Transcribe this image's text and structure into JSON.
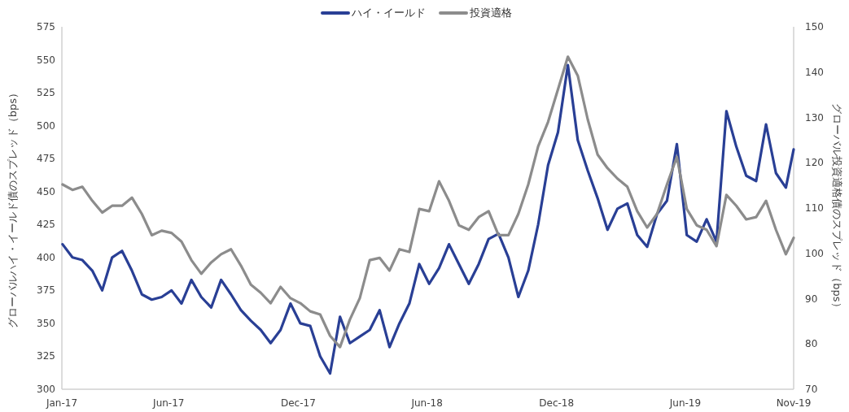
{
  "chart_data": {
    "type": "line",
    "ylabel": "グローバルハイ・イールド債のスプレッド（bps）",
    "y2label": "グローバル投資適格債のスプレッド（bps）",
    "legend": "top",
    "x": [
      "2017-01-02",
      "2017-01-16",
      "2017-01-30",
      "2017-02-13",
      "2017-02-27",
      "2017-03-13",
      "2017-03-27",
      "2017-04-10",
      "2017-04-24",
      "2017-05-08",
      "2017-05-22",
      "2017-06-05",
      "2017-06-19",
      "2017-07-03",
      "2017-07-17",
      "2017-07-31",
      "2017-08-14",
      "2017-08-28",
      "2017-09-11",
      "2017-09-25",
      "2017-10-09",
      "2017-10-23",
      "2017-11-06",
      "2017-11-20",
      "2017-12-04",
      "2017-12-18",
      "2018-01-01",
      "2018-01-15",
      "2018-01-29",
      "2018-02-12",
      "2018-02-26",
      "2018-03-12",
      "2018-03-26",
      "2018-04-09",
      "2018-04-23",
      "2018-05-07",
      "2018-05-21",
      "2018-06-04",
      "2018-06-18",
      "2018-07-02",
      "2018-07-16",
      "2018-07-30",
      "2018-08-13",
      "2018-08-27",
      "2018-09-10",
      "2018-09-24",
      "2018-10-08",
      "2018-10-22",
      "2018-11-05",
      "2018-11-19",
      "2018-12-03",
      "2018-12-17",
      "2018-12-31",
      "2019-01-14",
      "2019-01-28",
      "2019-02-11",
      "2019-02-25",
      "2019-03-11",
      "2019-03-25",
      "2019-04-08",
      "2019-04-22",
      "2019-05-06",
      "2019-05-20",
      "2019-06-03",
      "2019-06-17",
      "2019-07-01",
      "2019-07-15",
      "2019-07-29",
      "2019-08-12",
      "2019-08-26",
      "2019-09-09",
      "2019-09-23",
      "2019-10-07",
      "2019-10-21",
      "2019-11-01"
    ],
    "series": [
      {
        "name": "ハイ・イールド",
        "color": "#293f95",
        "values": [
          410,
          400,
          398,
          390,
          375,
          400,
          405,
          390,
          372,
          368,
          370,
          375,
          365,
          383,
          370,
          362,
          383,
          372,
          360,
          352,
          345,
          335,
          345,
          365,
          350,
          348,
          325,
          312,
          355,
          335,
          340,
          345,
          360,
          332,
          350,
          365,
          395,
          380,
          392,
          410,
          395,
          380,
          395,
          414,
          418,
          400,
          370,
          390,
          425,
          470,
          495,
          546,
          489,
          466,
          445,
          421,
          437,
          441,
          417,
          408,
          433,
          443,
          486,
          417,
          412,
          429,
          412,
          511,
          484,
          462,
          458,
          501,
          464,
          453,
          482
        ]
      },
      {
        "name": "投資適格",
        "color": "#8c8c8c",
        "axis": "y2",
        "values": [
          115.2,
          114,
          114.7,
          111.6,
          109,
          110.5,
          110.5,
          112.3,
          108.7,
          104,
          105,
          104.5,
          102.6,
          98.5,
          95.5,
          98,
          99.8,
          100.9,
          97.3,
          93.1,
          91.3,
          89,
          92.6,
          90.1,
          89,
          87.2,
          86.5,
          81.8,
          79.3,
          85.4,
          90.1,
          98.5,
          99,
          96.2,
          100.9,
          100.3,
          109.8,
          109.3,
          115.9,
          111.6,
          106.2,
          105.2,
          108,
          109.3,
          104,
          104,
          108.7,
          115.2,
          123.6,
          129,
          136.2,
          143.4,
          139.2,
          129.6,
          121.8,
          118.8,
          116.5,
          114.7,
          109.3,
          105.7,
          108.7,
          115.2,
          121.3,
          109.8,
          106.2,
          105.2,
          101.6,
          112.9,
          110.5,
          107.5,
          108,
          111.6,
          105.2,
          99.8,
          103.4
        ]
      }
    ],
    "xlim": [
      "2017-01-01",
      "2019-11-01"
    ],
    "xticks": [
      {
        "value": "2017-01-01",
        "label": "Jan-17"
      },
      {
        "value": "2017-06-01",
        "label": "Jun-17"
      },
      {
        "value": "2017-12-01",
        "label": "Dec-17"
      },
      {
        "value": "2018-06-01",
        "label": "Jun-18"
      },
      {
        "value": "2018-12-01",
        "label": "Dec-18"
      },
      {
        "value": "2019-06-01",
        "label": "Jun-19"
      },
      {
        "value": "2019-11-01",
        "label": "Nov-19"
      }
    ],
    "ylim": [
      300,
      575
    ],
    "yticks": [
      300,
      325,
      350,
      375,
      400,
      425,
      450,
      475,
      500,
      525,
      550,
      575
    ],
    "y2lim": [
      70,
      150
    ],
    "y2ticks": [
      70,
      80,
      90,
      100,
      110,
      120,
      130,
      140,
      150
    ]
  }
}
